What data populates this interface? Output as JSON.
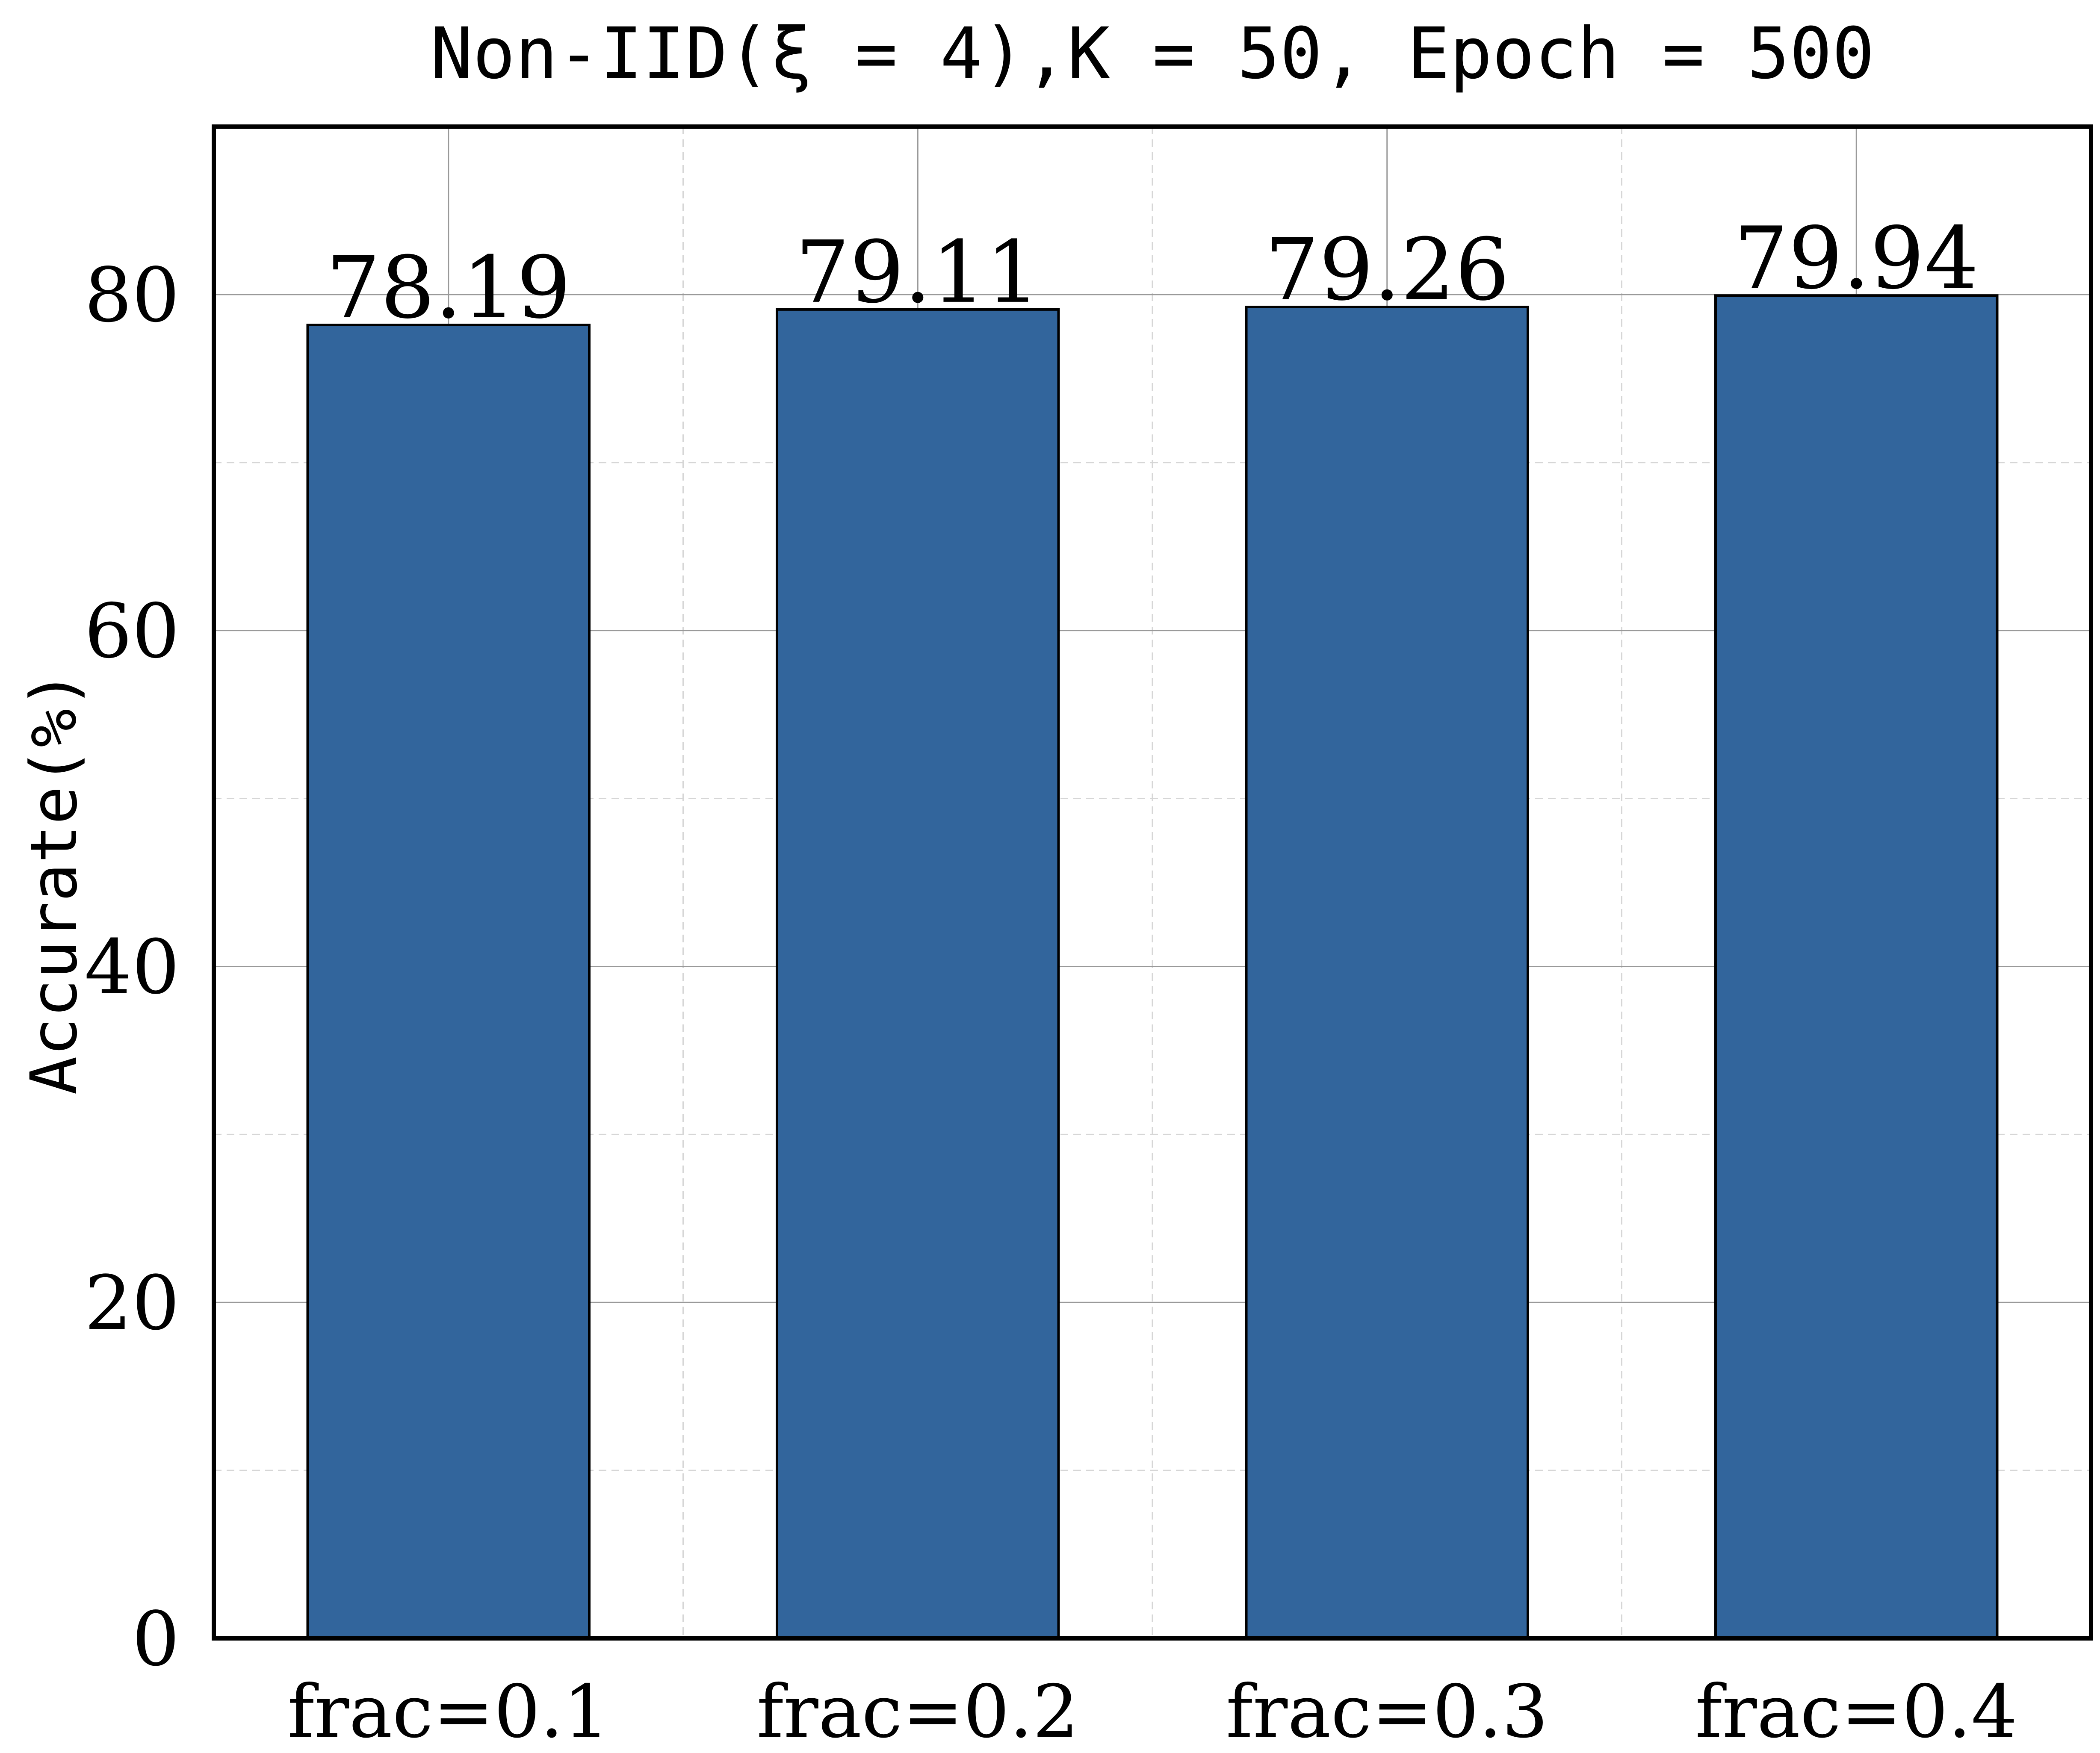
{
  "chart_data": {
    "type": "bar",
    "title": "Non-IID(ξ = 4),K = 50,  Epoch = 500",
    "xlabel": "",
    "ylabel": "Accurate(%)",
    "categories": [
      "frac=0.1",
      "frac=0.2",
      "frac=0.3",
      "frac=0.4"
    ],
    "values": [
      78.19,
      79.11,
      79.26,
      79.94
    ],
    "value_labels": [
      "78.19",
      "79.11",
      "79.26",
      "79.94"
    ],
    "ylim": [
      0,
      90
    ],
    "yticks": [
      0,
      20,
      40,
      60,
      80
    ],
    "ytick_labels": [
      "0",
      "20",
      "40",
      "60",
      "80"
    ],
    "grid": true,
    "legend": "none",
    "colors": {
      "bar": "#32659c",
      "bar_edge": "#000000",
      "grid_major": "#999999",
      "grid_minor": "#d6d6d6"
    }
  }
}
